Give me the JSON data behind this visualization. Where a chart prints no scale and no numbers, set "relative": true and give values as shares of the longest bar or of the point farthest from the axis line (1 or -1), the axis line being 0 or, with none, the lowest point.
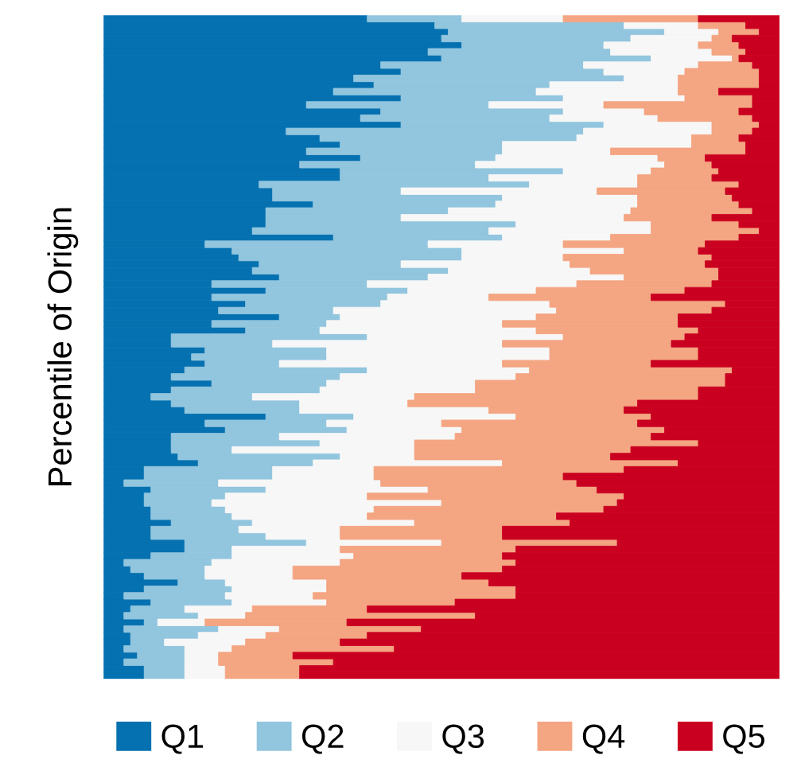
{
  "chart_data": {
    "type": "bar",
    "orientation": "horizontal",
    "stacked": true,
    "relative": true,
    "ylabel": "Percentile of Origin",
    "legend": "bottom",
    "grid": false,
    "categories": [
      null,
      null,
      null,
      null,
      null,
      null,
      null,
      null,
      null,
      null,
      null,
      null,
      null,
      null,
      null,
      null,
      null,
      null,
      null,
      null,
      null,
      null,
      null,
      null,
      null,
      null,
      null,
      null,
      null,
      null,
      null,
      null,
      null,
      null,
      null,
      null,
      null,
      null,
      null,
      null,
      null,
      null,
      null,
      null,
      null,
      null,
      null,
      null,
      null,
      null,
      null,
      null,
      null,
      null,
      null,
      null,
      null,
      null,
      null,
      null,
      null,
      null,
      null,
      null,
      null,
      null,
      null,
      null,
      null,
      null,
      null,
      null,
      null,
      null,
      null,
      null,
      null,
      null,
      null,
      null,
      null,
      null,
      null,
      null,
      null,
      null,
      null,
      null,
      null,
      null,
      null,
      null,
      null,
      null,
      null,
      null,
      null,
      null,
      null,
      null
    ],
    "series": [
      {
        "name": "Q1",
        "color": "#0571b0",
        "values": [
          0.39,
          0.49,
          0.51,
          0.5,
          0.53,
          0.48,
          0.5,
          0.41,
          0.44,
          0.37,
          0.4,
          0.34,
          0.44,
          0.3,
          0.41,
          0.38,
          0.44,
          0.27,
          0.32,
          0.35,
          0.3,
          0.38,
          0.29,
          0.35,
          0.35,
          0.23,
          0.25,
          0.25,
          0.31,
          0.24,
          0.24,
          0.24,
          0.22,
          0.34,
          0.15,
          0.19,
          0.2,
          0.23,
          0.22,
          0.26,
          0.16,
          0.24,
          0.16,
          0.21,
          0.17,
          0.26,
          0.16,
          0.21,
          0.1,
          0.1,
          0.15,
          0.13,
          0.15,
          0.12,
          0.1,
          0.16,
          0.1,
          0.07,
          0.1,
          0.12,
          0.24,
          0.15,
          0.18,
          0.1,
          0.1,
          0.1,
          0.11,
          0.14,
          0.06,
          0.06,
          0.03,
          0.07,
          0.06,
          0.06,
          0.07,
          0.07,
          0.1,
          0.07,
          0.07,
          0.12,
          0.12,
          0.07,
          0.03,
          0.04,
          0.06,
          0.11,
          0.06,
          0.03,
          0.07,
          0.04,
          0.03,
          0.06,
          0.03,
          0.04,
          0.04,
          0.03,
          0.05,
          0.03,
          0.06,
          0.06
        ]
      },
      {
        "name": "Q2",
        "color": "#92c5de",
        "values": [
          0.14,
          0.28,
          0.32,
          0.28,
          0.21,
          0.27,
          0.31,
          0.3,
          0.3,
          0.4,
          0.26,
          0.3,
          0.24,
          0.27,
          0.27,
          0.28,
          0.3,
          0.44,
          0.38,
          0.24,
          0.29,
          0.2,
          0.26,
          0.33,
          0.22,
          0.4,
          0.19,
          0.34,
          0.27,
          0.27,
          0.2,
          0.37,
          0.35,
          0.25,
          0.33,
          0.34,
          0.33,
          0.21,
          0.29,
          0.22,
          0.23,
          0.21,
          0.26,
          0.2,
          0.17,
          0.09,
          0.17,
          0.11,
          0.29,
          0.15,
          0.18,
          0.2,
          0.11,
          0.27,
          0.25,
          0.17,
          0.22,
          0.15,
          0.19,
          0.17,
          0.13,
          0.18,
          0.18,
          0.16,
          0.22,
          0.09,
          0.24,
          0.17,
          0.19,
          0.19,
          0.14,
          0.17,
          0.12,
          0.1,
          0.11,
          0.12,
          0.12,
          0.13,
          0.17,
          0.18,
          0.07,
          0.12,
          0.13,
          0.11,
          0.09,
          0.07,
          0.13,
          0.15,
          0.12,
          0.08,
          0.11,
          0.02,
          0.14,
          0.1,
          0.05,
          0.09,
          0.07,
          0.09,
          0.06,
          0.06
        ]
      },
      {
        "name": "Q3",
        "color": "#f7f7f7",
        "values": [
          0.15,
          0.11,
          0.08,
          0.12,
          0.14,
          0.15,
          0.12,
          0.17,
          0.12,
          0.08,
          0.19,
          0.21,
          0.18,
          0.17,
          0.12,
          0.16,
          0.16,
          0.19,
          0.17,
          0.28,
          0.16,
          0.24,
          0.28,
          0.13,
          0.22,
          0.16,
          0.29,
          0.2,
          0.21,
          0.27,
          0.33,
          0.2,
          0.24,
          0.16,
          0.2,
          0.24,
          0.15,
          0.25,
          0.21,
          0.29,
          0.31,
          0.19,
          0.15,
          0.25,
          0.33,
          0.29,
          0.26,
          0.32,
          0.29,
          0.34,
          0.33,
          0.33,
          0.33,
          0.24,
          0.26,
          0.22,
          0.23,
          0.24,
          0.16,
          0.28,
          0.24,
          0.17,
          0.17,
          0.26,
          0.14,
          0.27,
          0.11,
          0.28,
          0.15,
          0.15,
          0.24,
          0.24,
          0.21,
          0.34,
          0.22,
          0.2,
          0.24,
          0.15,
          0.11,
          0.2,
          0.16,
          0.18,
          0.19,
          0.13,
          0.13,
          0.15,
          0.14,
          0.13,
          0.14,
          0.1,
          0.07,
          0.07,
          0.09,
          0.1,
          0.12,
          0.07,
          0.05,
          0.05,
          0.06,
          0.06
        ]
      },
      {
        "name": "Q4",
        "color": "#f4a582",
        "values": [
          0.2,
          0.07,
          0.06,
          0.03,
          0.06,
          0.05,
          0.01,
          0.08,
          0.11,
          0.12,
          0.12,
          0.06,
          0.1,
          0.22,
          0.14,
          0.14,
          0.07,
          0.06,
          0.07,
          0.08,
          0.2,
          0.07,
          0.07,
          0.1,
          0.11,
          0.15,
          0.19,
          0.14,
          0.15,
          0.18,
          0.13,
          0.13,
          0.16,
          0.19,
          0.21,
          0.11,
          0.22,
          0.2,
          0.19,
          0.14,
          0.2,
          0.22,
          0.24,
          0.26,
          0.23,
          0.21,
          0.26,
          0.24,
          0.18,
          0.25,
          0.22,
          0.22,
          0.22,
          0.3,
          0.31,
          0.37,
          0.33,
          0.42,
          0.34,
          0.2,
          0.2,
          0.29,
          0.3,
          0.29,
          0.42,
          0.32,
          0.29,
          0.26,
          0.37,
          0.28,
          0.29,
          0.25,
          0.38,
          0.26,
          0.34,
          0.28,
          0.23,
          0.24,
          0.24,
          0.26,
          0.26,
          0.22,
          0.26,
          0.31,
          0.25,
          0.24,
          0.28,
          0.3,
          0.19,
          0.17,
          0.34,
          0.21,
          0.21,
          0.15,
          0.14,
          0.24,
          0.11,
          0.17,
          0.11,
          0.11
        ]
      },
      {
        "name": "Q5",
        "color": "#ca0020",
        "values": [
          0.12,
          0.05,
          0.03,
          0.07,
          0.06,
          0.05,
          0.06,
          0.04,
          0.03,
          0.03,
          0.03,
          0.09,
          0.04,
          0.04,
          0.06,
          0.04,
          0.03,
          0.04,
          0.06,
          0.05,
          0.05,
          0.11,
          0.1,
          0.09,
          0.1,
          0.06,
          0.08,
          0.07,
          0.06,
          0.04,
          0.1,
          0.06,
          0.03,
          0.06,
          0.11,
          0.12,
          0.1,
          0.11,
          0.09,
          0.09,
          0.1,
          0.14,
          0.19,
          0.08,
          0.1,
          0.15,
          0.15,
          0.12,
          0.14,
          0.16,
          0.12,
          0.12,
          0.19,
          0.07,
          0.08,
          0.08,
          0.12,
          0.12,
          0.21,
          0.23,
          0.19,
          0.21,
          0.17,
          0.19,
          0.12,
          0.22,
          0.25,
          0.15,
          0.23,
          0.32,
          0.3,
          0.27,
          0.23,
          0.24,
          0.26,
          0.33,
          0.31,
          0.41,
          0.41,
          0.24,
          0.39,
          0.41,
          0.39,
          0.41,
          0.47,
          0.43,
          0.39,
          0.39,
          0.48,
          0.61,
          0.45,
          0.64,
          0.53,
          0.61,
          0.65,
          0.57,
          0.72,
          0.66,
          0.71,
          0.71
        ]
      }
    ]
  }
}
